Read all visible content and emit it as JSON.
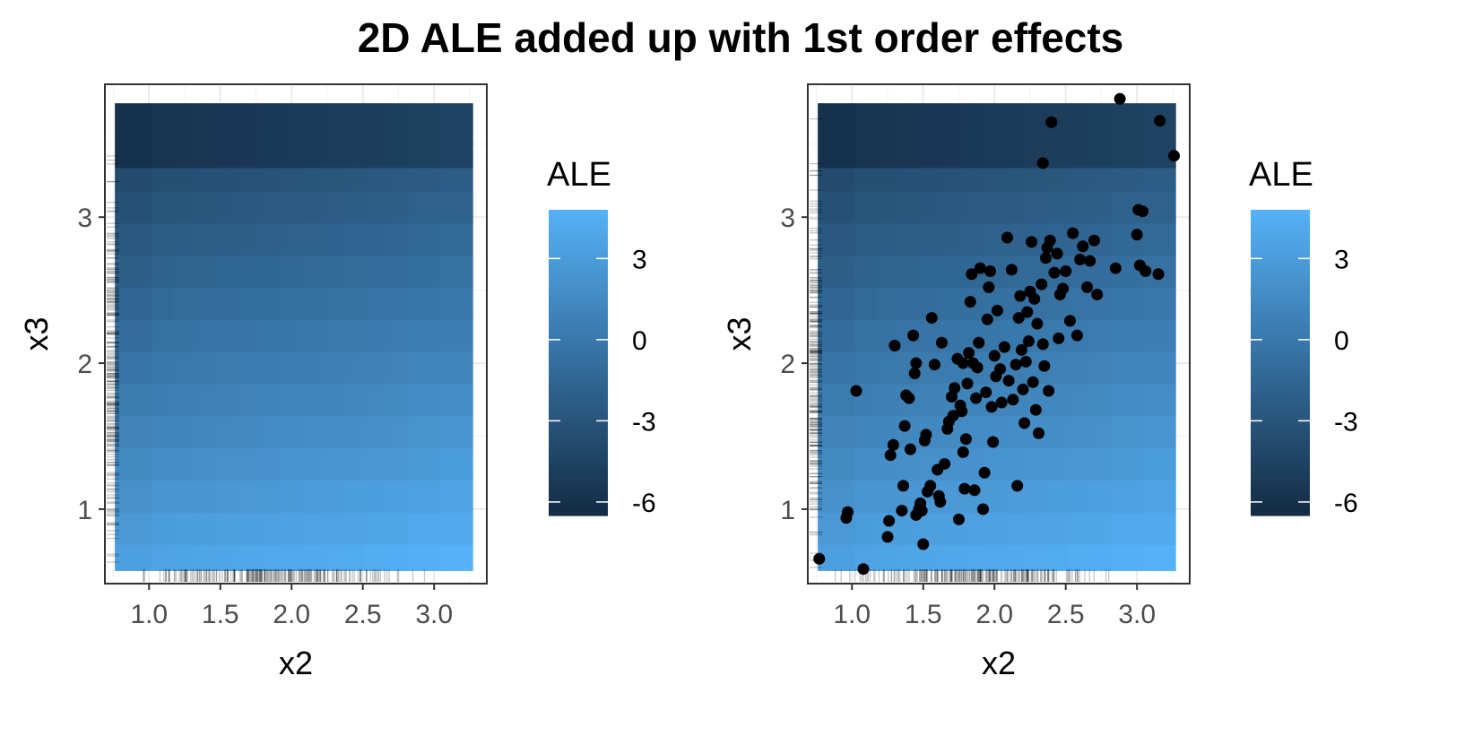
{
  "figure": {
    "title": "2D ALE added up with 1st order effects"
  },
  "colors": {
    "low": "#132B43",
    "high": "#56B1F7",
    "panel_border": "#333333",
    "grid": "#ebebeb",
    "point": "#000000",
    "rug": "#000000"
  },
  "chart_data": [
    {
      "type": "heatmap",
      "panel": "left",
      "title": "",
      "xlabel": "x2",
      "ylabel": "x3",
      "xlim": [
        0.69,
        3.37
      ],
      "ylim": [
        0.49,
        3.91
      ],
      "xticks": [
        1.0,
        1.5,
        2.0,
        2.5,
        3.0
      ],
      "xtick_labels": [
        "1.0",
        "1.5",
        "2.0",
        "2.5",
        "3.0"
      ],
      "yticks": [
        1,
        2,
        3
      ],
      "ytick_labels": [
        "1",
        "2",
        "3"
      ],
      "x_edges": [
        0.76,
        1.02,
        1.17,
        1.32,
        1.47,
        1.62,
        1.77,
        1.92,
        2.07,
        2.22,
        2.37,
        2.52,
        2.67,
        2.82,
        3.04,
        3.27
      ],
      "y_edges": [
        0.58,
        0.76,
        0.98,
        1.2,
        1.42,
        1.64,
        1.86,
        2.08,
        2.3,
        2.52,
        2.74,
        2.96,
        3.18,
        3.34,
        3.78
      ],
      "ale_x": [
        -0.6,
        -0.3,
        -0.22,
        -0.14,
        -0.06,
        0.02,
        0.1,
        0.18,
        0.26,
        0.34,
        0.42,
        0.5,
        0.58,
        0.75,
        0.9
      ],
      "ale_y": [
        3.9,
        3.3,
        2.7,
        2.1,
        1.5,
        0.9,
        0.3,
        -0.3,
        -0.9,
        -1.5,
        -2.1,
        -2.7,
        -3.2,
        -5.4
      ],
      "legend": {
        "title": "ALE",
        "ticks": [
          3,
          0,
          -3,
          -6
        ],
        "tick_labels": [
          "3",
          "0",
          "-3",
          "-6"
        ],
        "range": [
          -6.5,
          4.8
        ],
        "placement": "right"
      },
      "rug_x_note": "density concentrated 1.2–2.9, peak near 1.8–2.0",
      "rug_y_note": "density concentrated 1.0–3.0"
    },
    {
      "type": "heatmap",
      "panel": "right",
      "title": "",
      "xlabel": "x2",
      "ylabel": "x3",
      "xlim": [
        0.69,
        3.37
      ],
      "ylim": [
        0.49,
        3.91
      ],
      "xticks": [
        1.0,
        1.5,
        2.0,
        2.5,
        3.0
      ],
      "xtick_labels": [
        "1.0",
        "1.5",
        "2.0",
        "2.5",
        "3.0"
      ],
      "yticks": [
        1,
        2,
        3
      ],
      "ytick_labels": [
        "1",
        "2",
        "3"
      ],
      "x_edges": [
        0.76,
        1.02,
        1.17,
        1.32,
        1.47,
        1.62,
        1.77,
        1.92,
        2.07,
        2.22,
        2.37,
        2.52,
        2.67,
        2.82,
        3.04,
        3.27
      ],
      "y_edges": [
        0.58,
        0.76,
        0.98,
        1.2,
        1.42,
        1.64,
        1.86,
        2.08,
        2.3,
        2.52,
        2.74,
        2.96,
        3.18,
        3.34,
        3.78
      ],
      "ale_x": [
        -0.6,
        -0.3,
        -0.22,
        -0.14,
        -0.06,
        0.02,
        0.1,
        0.18,
        0.26,
        0.34,
        0.42,
        0.5,
        0.58,
        0.75,
        0.9
      ],
      "ale_y": [
        3.9,
        3.3,
        2.7,
        2.1,
        1.5,
        0.9,
        0.3,
        -0.3,
        -0.9,
        -1.5,
        -2.1,
        -2.7,
        -3.2,
        -5.4
      ],
      "legend": {
        "title": "ALE",
        "ticks": [
          3,
          0,
          -3,
          -6
        ],
        "tick_labels": [
          "3",
          "0",
          "-3",
          "-6"
        ],
        "range": [
          -6.5,
          4.8
        ],
        "placement": "right"
      },
      "points": [
        [
          0.77,
          0.66
        ],
        [
          1.08,
          0.59
        ],
        [
          0.96,
          0.94
        ],
        [
          0.97,
          0.98
        ],
        [
          1.03,
          1.81
        ],
        [
          1.25,
          0.81
        ],
        [
          1.26,
          0.92
        ],
        [
          1.27,
          1.37
        ],
        [
          1.29,
          1.44
        ],
        [
          1.3,
          2.12
        ],
        [
          1.35,
          0.99
        ],
        [
          1.36,
          1.16
        ],
        [
          1.37,
          1.57
        ],
        [
          1.38,
          1.78
        ],
        [
          1.4,
          1.76
        ],
        [
          1.41,
          1.41
        ],
        [
          1.43,
          2.19
        ],
        [
          1.44,
          1.93
        ],
        [
          1.45,
          2.0
        ],
        [
          1.45,
          0.96
        ],
        [
          1.47,
          1.0
        ],
        [
          1.48,
          1.04
        ],
        [
          1.49,
          0.99
        ],
        [
          1.5,
          0.76
        ],
        [
          1.51,
          1.47
        ],
        [
          1.52,
          1.51
        ],
        [
          1.53,
          1.12
        ],
        [
          1.55,
          1.16
        ],
        [
          1.56,
          2.31
        ],
        [
          1.58,
          1.99
        ],
        [
          1.6,
          1.27
        ],
        [
          1.61,
          1.09
        ],
        [
          1.62,
          1.05
        ],
        [
          1.63,
          2.14
        ],
        [
          1.65,
          1.31
        ],
        [
          1.67,
          1.55
        ],
        [
          1.68,
          1.6
        ],
        [
          1.7,
          1.77
        ],
        [
          1.71,
          1.64
        ],
        [
          1.72,
          1.83
        ],
        [
          1.74,
          2.03
        ],
        [
          1.75,
          0.93
        ],
        [
          1.76,
          1.71
        ],
        [
          1.77,
          1.67
        ],
        [
          1.78,
          1.39
        ],
        [
          1.78,
          2.0
        ],
        [
          1.79,
          1.14
        ],
        [
          1.8,
          1.48
        ],
        [
          1.81,
          1.86
        ],
        [
          1.82,
          2.07
        ],
        [
          1.83,
          2.42
        ],
        [
          1.84,
          2.61
        ],
        [
          1.85,
          2.0
        ],
        [
          1.86,
          1.13
        ],
        [
          1.87,
          1.76
        ],
        [
          1.88,
          1.97
        ],
        [
          1.89,
          2.14
        ],
        [
          1.9,
          2.65
        ],
        [
          1.92,
          1.0
        ],
        [
          1.93,
          1.25
        ],
        [
          1.94,
          1.8
        ],
        [
          1.95,
          2.3
        ],
        [
          1.96,
          2.52
        ],
        [
          1.97,
          2.63
        ],
        [
          1.98,
          1.7
        ],
        [
          1.99,
          1.46
        ],
        [
          2.0,
          2.05
        ],
        [
          2.01,
          1.91
        ],
        [
          2.02,
          2.36
        ],
        [
          2.04,
          1.96
        ],
        [
          2.05,
          1.73
        ],
        [
          2.07,
          2.11
        ],
        [
          2.09,
          2.86
        ],
        [
          2.1,
          1.88
        ],
        [
          2.12,
          2.64
        ],
        [
          2.13,
          1.75
        ],
        [
          2.15,
          1.99
        ],
        [
          2.16,
          1.16
        ],
        [
          2.17,
          2.31
        ],
        [
          2.18,
          2.46
        ],
        [
          2.19,
          2.09
        ],
        [
          2.2,
          1.82
        ],
        [
          2.21,
          1.59
        ],
        [
          2.22,
          2.01
        ],
        [
          2.23,
          2.35
        ],
        [
          2.24,
          2.15
        ],
        [
          2.25,
          2.49
        ],
        [
          2.26,
          2.83
        ],
        [
          2.27,
          1.87
        ],
        [
          2.28,
          2.44
        ],
        [
          2.29,
          1.68
        ],
        [
          2.3,
          2.27
        ],
        [
          2.31,
          1.52
        ],
        [
          2.33,
          2.54
        ],
        [
          2.34,
          2.13
        ],
        [
          2.34,
          3.37
        ],
        [
          2.35,
          1.98
        ],
        [
          2.36,
          2.72
        ],
        [
          2.37,
          2.79
        ],
        [
          2.38,
          1.81
        ],
        [
          2.39,
          2.84
        ],
        [
          2.4,
          3.65
        ],
        [
          2.42,
          2.62
        ],
        [
          2.44,
          2.75
        ],
        [
          2.45,
          2.17
        ],
        [
          2.46,
          2.47
        ],
        [
          2.48,
          2.51
        ],
        [
          2.5,
          2.63
        ],
        [
          2.53,
          2.29
        ],
        [
          2.55,
          2.89
        ],
        [
          2.58,
          2.19
        ],
        [
          2.6,
          2.71
        ],
        [
          2.62,
          2.8
        ],
        [
          2.65,
          2.52
        ],
        [
          2.67,
          2.7
        ],
        [
          2.7,
          2.84
        ],
        [
          2.72,
          2.47
        ],
        [
          2.85,
          2.65
        ],
        [
          2.88,
          3.81
        ],
        [
          3.0,
          2.88
        ],
        [
          3.01,
          3.05
        ],
        [
          3.02,
          2.67
        ],
        [
          3.04,
          3.04
        ],
        [
          3.06,
          2.63
        ],
        [
          3.15,
          2.61
        ],
        [
          3.16,
          3.66
        ],
        [
          3.26,
          3.42
        ]
      ]
    }
  ]
}
